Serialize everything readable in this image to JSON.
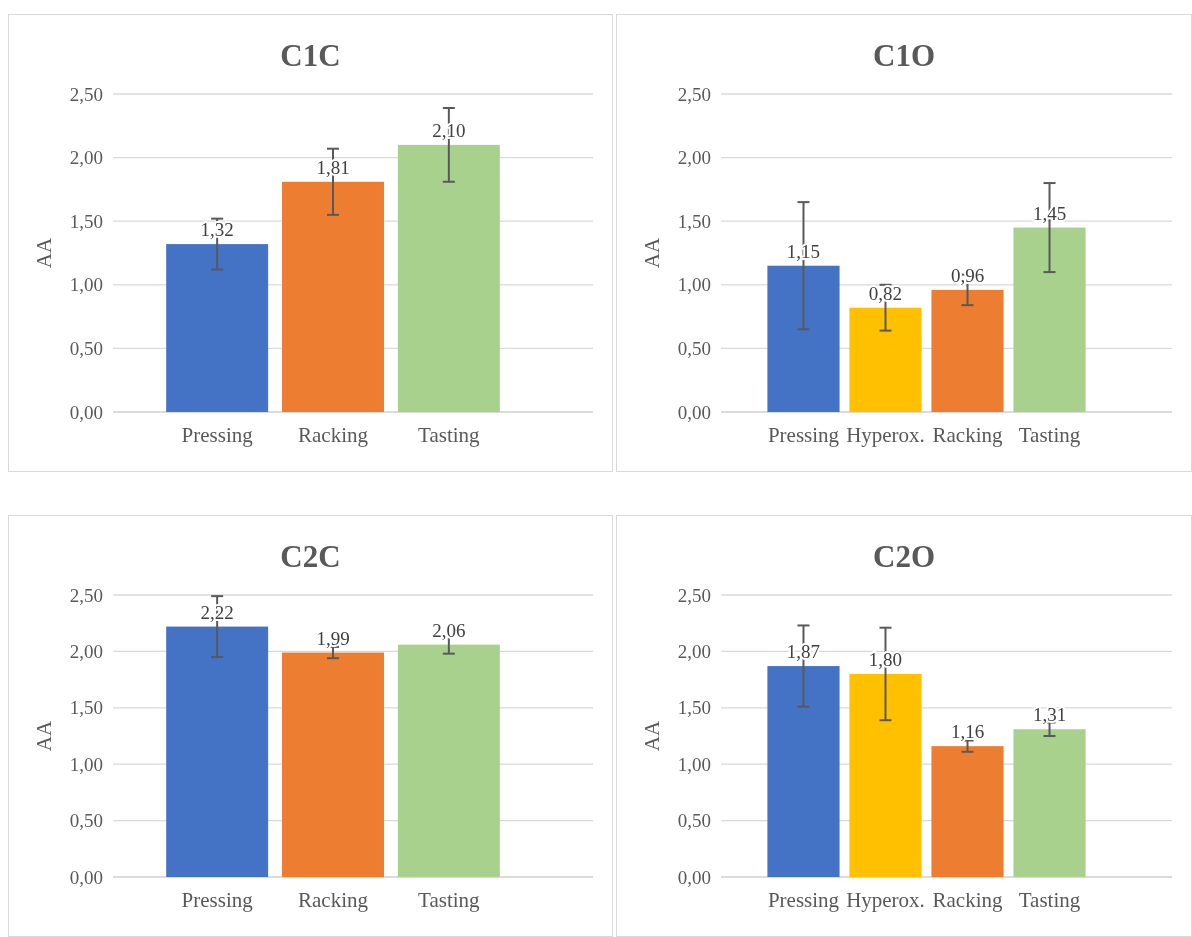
{
  "chart_data": [
    {
      "type": "bar",
      "title": "C1C",
      "ylabel": "AA",
      "categories": [
        "Pressing",
        "Racking",
        "Tasting"
      ],
      "values": [
        1.32,
        1.81,
        2.1
      ],
      "colors": [
        "#4472c4",
        "#ed7d31",
        "#a9d18e"
      ],
      "errors": [
        0.2,
        0.26,
        0.29
      ],
      "value_labels": [
        "1,32",
        "1,81",
        "2,10"
      ],
      "ylim": [
        0,
        2.5
      ],
      "yticks": [
        {
          "value": 0,
          "label": "0,00"
        },
        {
          "value": 0.5,
          "label": "0,50"
        },
        {
          "value": 1,
          "label": "1,00"
        },
        {
          "value": 1.5,
          "label": "1,50"
        },
        {
          "value": 2,
          "label": "2,00"
        },
        {
          "value": 2.5,
          "label": "2,50"
        }
      ],
      "grid": "y"
    },
    {
      "type": "bar",
      "title": "C1O",
      "ylabel": "AA",
      "categories": [
        "Pressing",
        "Hyperox.",
        "Racking",
        "Tasting"
      ],
      "values": [
        1.15,
        0.82,
        0.96,
        1.45
      ],
      "colors": [
        "#4472c4",
        "#ffc000",
        "#ed7d31",
        "#a9d18e"
      ],
      "errors": [
        0.5,
        0.18,
        0.12,
        0.35
      ],
      "value_labels": [
        "1,15",
        "0,82",
        "0,96",
        "1,45"
      ],
      "ylim": [
        0,
        2.5
      ],
      "yticks": [
        {
          "value": 0,
          "label": "0,00"
        },
        {
          "value": 0.5,
          "label": "0,50"
        },
        {
          "value": 1,
          "label": "1,00"
        },
        {
          "value": 1.5,
          "label": "1,50"
        },
        {
          "value": 2,
          "label": "2,00"
        },
        {
          "value": 2.5,
          "label": "2,50"
        }
      ],
      "grid": "y"
    },
    {
      "type": "bar",
      "title": "C2C",
      "ylabel": "AA",
      "categories": [
        "Pressing",
        "Racking",
        "Tasting"
      ],
      "values": [
        2.22,
        1.99,
        2.06
      ],
      "colors": [
        "#4472c4",
        "#ed7d31",
        "#a9d18e"
      ],
      "errors": [
        0.27,
        0.05,
        0.08
      ],
      "value_labels": [
        "2,22",
        "1,99",
        "2,06"
      ],
      "ylim": [
        0,
        2.5
      ],
      "yticks": [
        {
          "value": 0,
          "label": "0,00"
        },
        {
          "value": 0.5,
          "label": "0,50"
        },
        {
          "value": 1,
          "label": "1,00"
        },
        {
          "value": 1.5,
          "label": "1,50"
        },
        {
          "value": 2,
          "label": "2,00"
        },
        {
          "value": 2.5,
          "label": "2,50"
        }
      ],
      "grid": "y"
    },
    {
      "type": "bar",
      "title": "C2O",
      "ylabel": "AA",
      "categories": [
        "Pressing",
        "Hyperox.",
        "Racking",
        "Tasting"
      ],
      "values": [
        1.87,
        1.8,
        1.16,
        1.31
      ],
      "colors": [
        "#4472c4",
        "#ffc000",
        "#ed7d31",
        "#a9d18e"
      ],
      "errors": [
        0.36,
        0.41,
        0.05,
        0.06
      ],
      "value_labels": [
        "1,87",
        "1,80",
        "1,16",
        "1,31"
      ],
      "ylim": [
        0,
        2.5
      ],
      "yticks": [
        {
          "value": 0,
          "label": "0,00"
        },
        {
          "value": 0.5,
          "label": "0,50"
        },
        {
          "value": 1,
          "label": "1,00"
        },
        {
          "value": 1.5,
          "label": "1,50"
        },
        {
          "value": 2,
          "label": "2,00"
        },
        {
          "value": 2.5,
          "label": "2,50"
        }
      ],
      "grid": "y"
    }
  ]
}
